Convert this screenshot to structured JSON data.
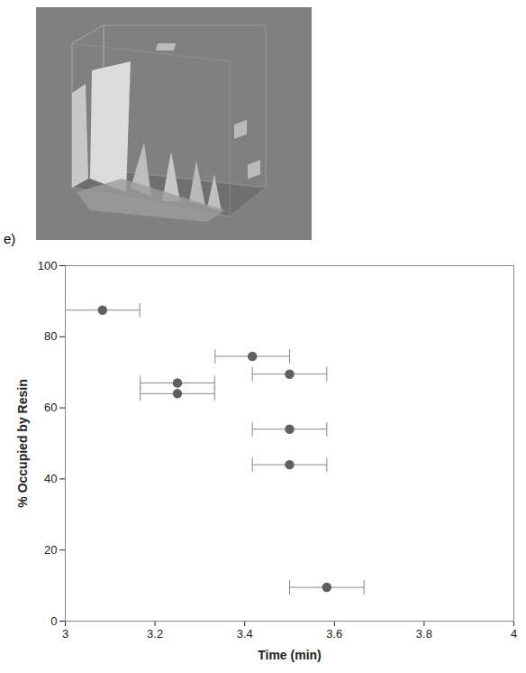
{
  "chart_data": {
    "type": "scatter",
    "panel_label": "e)",
    "x_label": "Time (min)",
    "y_label": "% Occupied by Resin",
    "x": [
      3.083,
      3.25,
      3.25,
      3.417,
      3.5,
      3.5,
      3.5,
      3.583
    ],
    "values": [
      87.5,
      67,
      64,
      74.5,
      69.5,
      54,
      44,
      9.5
    ],
    "x_error": [
      0.083,
      0.083,
      0.083,
      0.083,
      0.083,
      0.083,
      0.083,
      0.083
    ],
    "color": "#606060",
    "marker": "circle",
    "xlim": [
      3,
      4
    ],
    "xticks": [
      3,
      3.2,
      3.4,
      3.6,
      3.8,
      4
    ],
    "ylim": [
      0,
      100
    ],
    "yticks": [
      0,
      20,
      40,
      60,
      80,
      100
    ],
    "grid": false
  }
}
